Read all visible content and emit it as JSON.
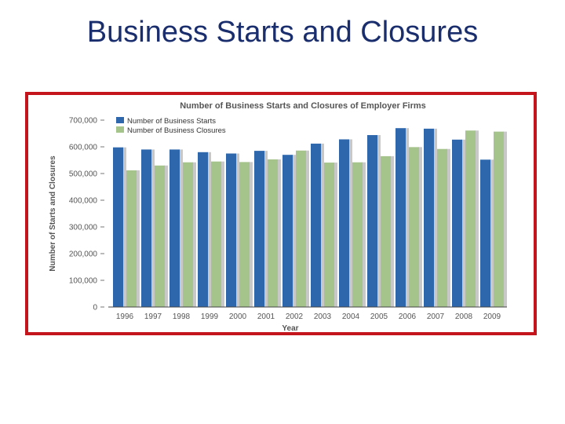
{
  "slide": {
    "title": "Business Starts and Closures"
  },
  "colors": {
    "title": "#1a2e6e",
    "frame": "#c4151c",
    "starts": "#2e67ac",
    "closures": "#a5c48c",
    "shadow": "#c8c8c8",
    "axis_text": "#555555"
  },
  "chart_data": {
    "type": "bar",
    "title": "Number of Business Starts and Closures of Employer Firms",
    "xlabel": "Year",
    "ylabel": "Number of Starts and Closures",
    "ylim": [
      0,
      700000
    ],
    "yticks": [
      0,
      100000,
      200000,
      300000,
      400000,
      500000,
      600000,
      700000
    ],
    "ytick_labels": [
      "0",
      "100,000",
      "200,000",
      "300,000",
      "400,000",
      "500,000",
      "600,000",
      "700,000"
    ],
    "categories": [
      "1996",
      "1997",
      "1998",
      "1999",
      "2000",
      "2001",
      "2002",
      "2003",
      "2004",
      "2005",
      "2006",
      "2007",
      "2008",
      "2009"
    ],
    "series": [
      {
        "name": "Number of Business Starts",
        "color": "#2e67ac",
        "values": [
          598000,
          590000,
          590000,
          580000,
          575000,
          585000,
          570000,
          612000,
          628000,
          644000,
          670000,
          668000,
          627000,
          552000
        ]
      },
      {
        "name": "Number of Business Closures",
        "color": "#a5c48c",
        "values": [
          512000,
          530000,
          542000,
          545000,
          543000,
          553000,
          586000,
          541000,
          542000,
          565000,
          599000,
          592000,
          661000,
          657000
        ]
      }
    ],
    "legend": "top-left",
    "grid": false
  }
}
